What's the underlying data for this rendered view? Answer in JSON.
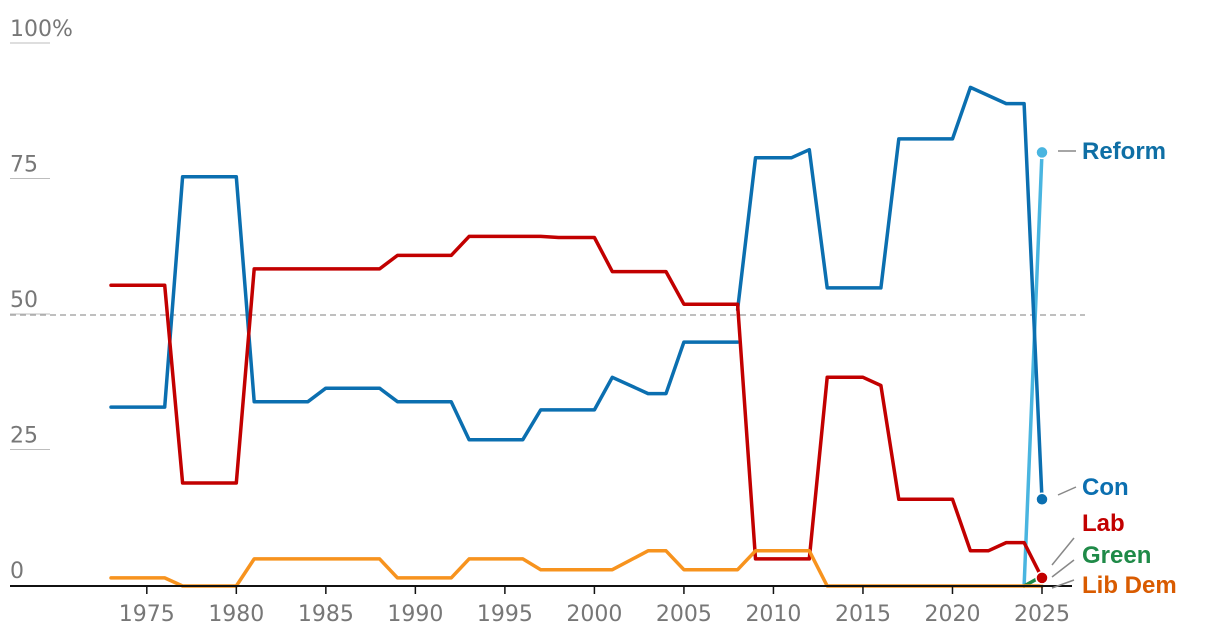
{
  "chart_data": {
    "type": "line",
    "title": "",
    "xlabel": "",
    "ylabel": "",
    "xlim": [
      1973,
      2025
    ],
    "ylim": [
      0,
      100
    ],
    "x_ticks": [
      {
        "value": 1975,
        "label": "1975"
      },
      {
        "value": 1980,
        "label": "1980"
      },
      {
        "value": 1985,
        "label": "1985"
      },
      {
        "value": 1990,
        "label": "1990"
      },
      {
        "value": 1995,
        "label": "1995"
      },
      {
        "value": 2000,
        "label": "2000"
      },
      {
        "value": 2005,
        "label": "2005"
      },
      {
        "value": 2010,
        "label": "2010"
      },
      {
        "value": 2015,
        "label": "2015"
      },
      {
        "value": 2020,
        "label": "2020"
      },
      {
        "value": 2025,
        "label": "2025"
      }
    ],
    "y_ticks": [
      {
        "value": 100,
        "label": "100%"
      },
      {
        "value": 75,
        "label": "75"
      },
      {
        "value": 50,
        "label": "50"
      },
      {
        "value": 25,
        "label": "25"
      },
      {
        "value": 0,
        "label": "0"
      }
    ],
    "reference_line": {
      "value": 50,
      "style": "dashed"
    },
    "grid": false,
    "legend": "direct labels at right",
    "series": [
      {
        "name": "Reform",
        "color": "#49b5e0",
        "label_color": "#0f6fa5",
        "end_marker": true,
        "points": [
          [
            2024,
            0
          ],
          [
            2025,
            80
          ]
        ]
      },
      {
        "name": "Con",
        "color": "#0b6fb0",
        "label_color": "#0b6fb0",
        "end_marker": true,
        "points": [
          [
            1973,
            33
          ],
          [
            1976,
            33
          ],
          [
            1977,
            75.5
          ],
          [
            1980,
            75.5
          ],
          [
            1981,
            34
          ],
          [
            1984,
            34
          ],
          [
            1985,
            36.5
          ],
          [
            1988,
            36.5
          ],
          [
            1989,
            34
          ],
          [
            1992,
            34
          ],
          [
            1993,
            27
          ],
          [
            1996,
            27
          ],
          [
            1997,
            32.5
          ],
          [
            2000,
            32.5
          ],
          [
            2001,
            38.5
          ],
          [
            2003,
            35.5
          ],
          [
            2004,
            35.5
          ],
          [
            2005,
            45
          ],
          [
            2008,
            45
          ],
          null,
          [
            2008,
            51
          ],
          [
            2009,
            79
          ],
          [
            2011,
            79
          ],
          [
            2012,
            80.5
          ],
          [
            2013,
            55
          ],
          [
            2016,
            55
          ],
          [
            2017,
            82.5
          ],
          [
            2020,
            82.5
          ],
          [
            2021,
            92
          ],
          [
            2023,
            89
          ],
          [
            2024,
            89
          ],
          [
            2025,
            16
          ]
        ]
      },
      {
        "name": "Lab",
        "color": "#c20000",
        "label_color": "#c20000",
        "end_marker": true,
        "points": [
          [
            1973,
            55.5
          ],
          [
            1976,
            55.5
          ],
          [
            1977,
            19
          ],
          [
            1980,
            19
          ],
          [
            1981,
            58.5
          ],
          [
            1988,
            58.5
          ],
          [
            1989,
            61
          ],
          [
            1992,
            61
          ],
          [
            1993,
            64.5
          ],
          [
            1997,
            64.5
          ],
          [
            1998,
            64.3
          ],
          [
            2000,
            64.3
          ],
          [
            2001,
            58
          ],
          [
            2004,
            58
          ],
          [
            2005,
            52
          ],
          [
            2008,
            52
          ],
          [
            2009,
            5
          ],
          [
            2012,
            5
          ],
          [
            2013,
            38.5
          ],
          [
            2015,
            38.5
          ],
          [
            2016,
            37
          ],
          [
            2017,
            16
          ],
          [
            2020,
            16
          ],
          [
            2021,
            6.5
          ],
          [
            2022,
            6.5
          ],
          [
            2023,
            8
          ],
          [
            2024,
            8
          ],
          [
            2025,
            1.5
          ]
        ]
      },
      {
        "name": "Green",
        "color": "#1f8a48",
        "label_color": "#1f8a48",
        "end_marker": false,
        "points": [
          [
            2024,
            0
          ],
          [
            2025,
            1.8
          ]
        ]
      },
      {
        "name": "Lib Dem",
        "color": "#f7931e",
        "label_color": "#d95b00",
        "end_marker": false,
        "points": [
          [
            1973,
            1.5
          ],
          [
            1976,
            1.5
          ],
          [
            1977,
            0
          ],
          [
            1980,
            0
          ],
          [
            1981,
            5
          ],
          [
            1988,
            5
          ],
          [
            1989,
            1.5
          ],
          [
            1992,
            1.5
          ],
          [
            1993,
            5
          ],
          [
            1996,
            5
          ],
          [
            1997,
            3
          ],
          [
            2001,
            3
          ],
          [
            2003,
            6.5
          ],
          [
            2004,
            6.5
          ],
          [
            2005,
            3
          ],
          [
            2008,
            3
          ],
          [
            2009,
            6.5
          ],
          [
            2012,
            6.5
          ],
          [
            2013,
            0
          ],
          [
            2025,
            0
          ]
        ]
      }
    ]
  }
}
